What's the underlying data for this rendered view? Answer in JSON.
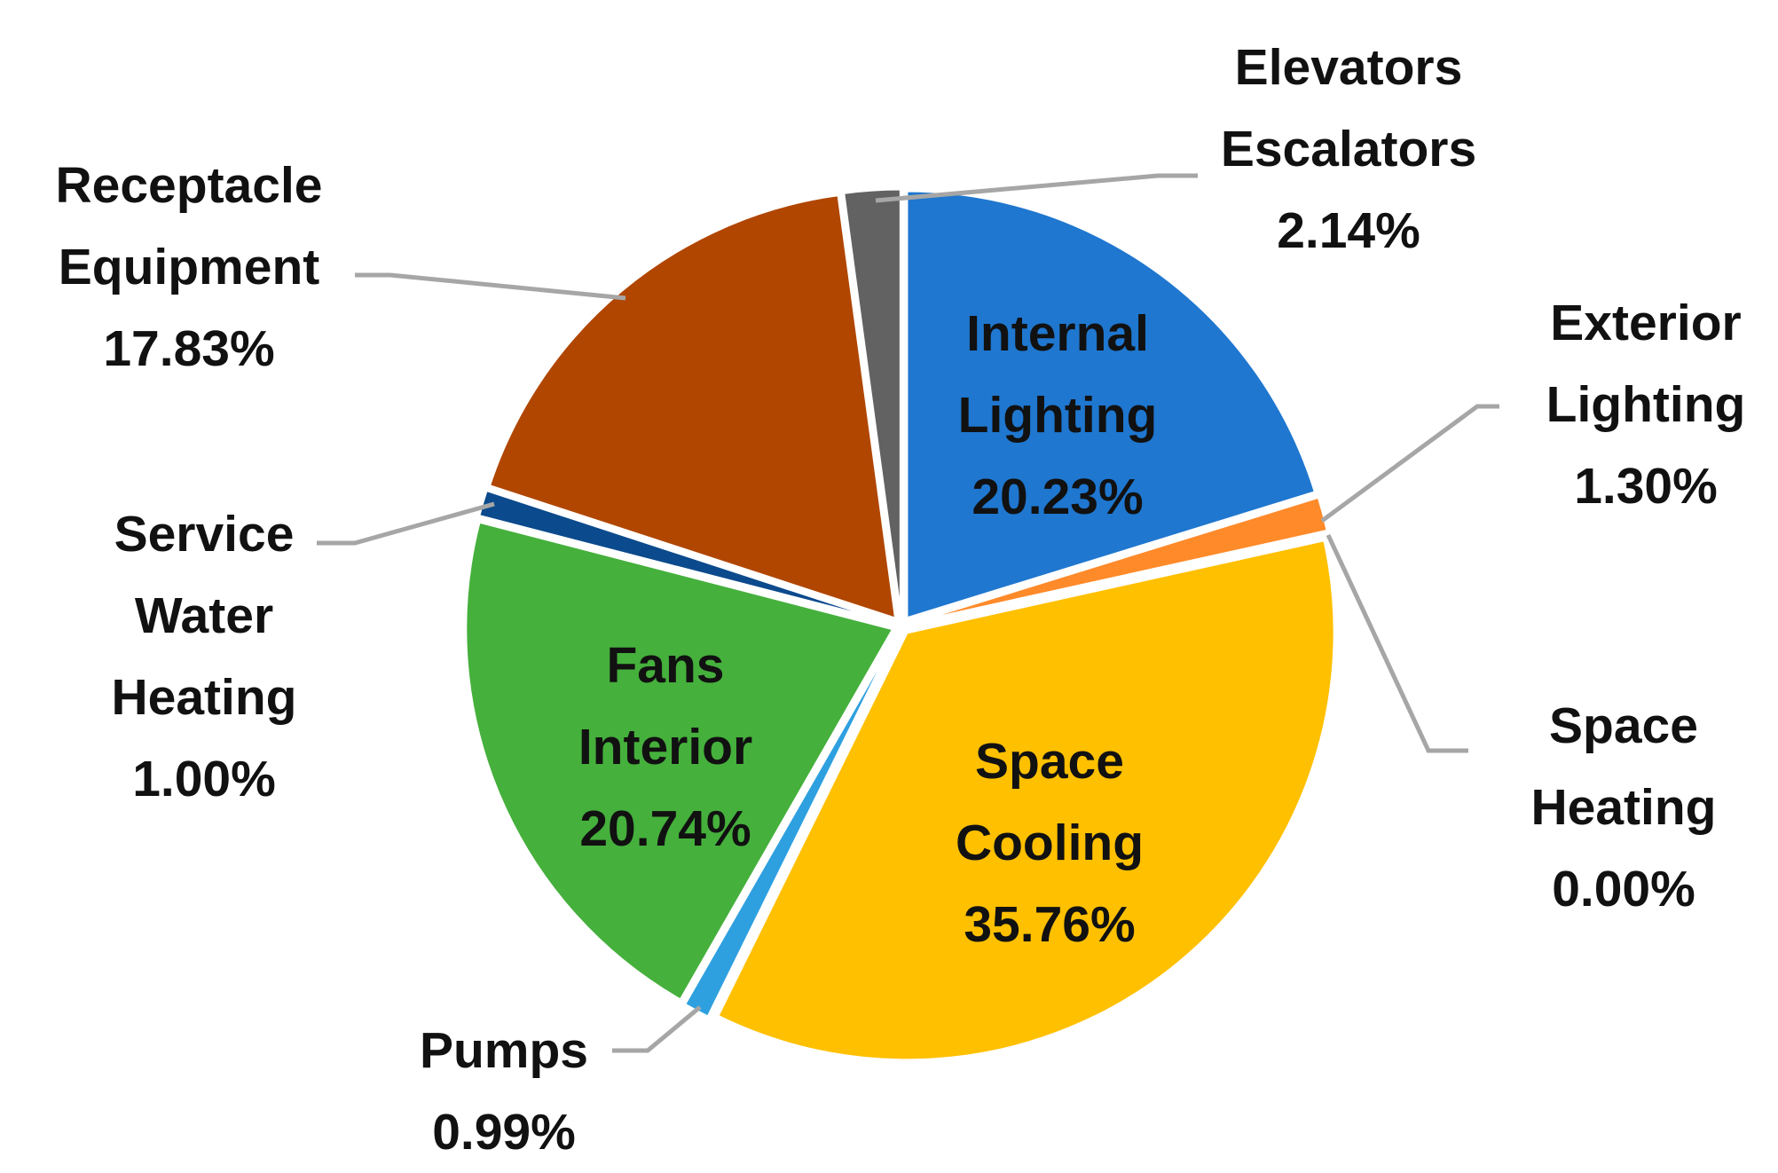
{
  "chart_data": {
    "type": "pie",
    "slices": [
      {
        "name": "Internal Lighting",
        "value": 20.23,
        "label_lines": [
          "Internal",
          "Lighting"
        ],
        "value_label": "20.23%",
        "color": "#1f77cf"
      },
      {
        "name": "Exterior Lighting",
        "value": 1.3,
        "label_lines": [
          "Exterior",
          "Lighting"
        ],
        "value_label": "1.30%",
        "color": "#ff8a2a"
      },
      {
        "name": "Space Heating",
        "value": 0.0,
        "label_lines": [
          "Space",
          "Heating"
        ],
        "value_label": "0.00%",
        "color": "#a5a5a5"
      },
      {
        "name": "Space Cooling",
        "value": 35.76,
        "label_lines": [
          "Space",
          "Cooling"
        ],
        "value_label": "35.76%",
        "color": "#ffc000"
      },
      {
        "name": "Pumps",
        "value": 0.99,
        "label_lines": [
          "Pumps"
        ],
        "value_label": "0.99%",
        "color": "#2ea0e0"
      },
      {
        "name": "Fans Interior",
        "value": 20.74,
        "label_lines": [
          "Fans",
          "Interior"
        ],
        "value_label": "20.74%",
        "color": "#45b03c"
      },
      {
        "name": "Service Water Heating",
        "value": 1.0,
        "label_lines": [
          "Service",
          "Water",
          "Heating"
        ],
        "value_label": "1.00%",
        "color": "#0b4a8c"
      },
      {
        "name": "Receptacle Equipment",
        "value": 17.83,
        "label_lines": [
          "Receptacle",
          "Equipment"
        ],
        "value_label": "17.83%",
        "color": "#b04600"
      },
      {
        "name": "Elevators Escalators",
        "value": 2.14,
        "label_lines": [
          "Elevators",
          "Escalators"
        ],
        "value_label": "2.14%",
        "color": "#626262"
      }
    ],
    "start_angle": "12 o'clock",
    "direction": "clockwise",
    "legend": "none",
    "leader_line_color": "#a6a6a6"
  }
}
